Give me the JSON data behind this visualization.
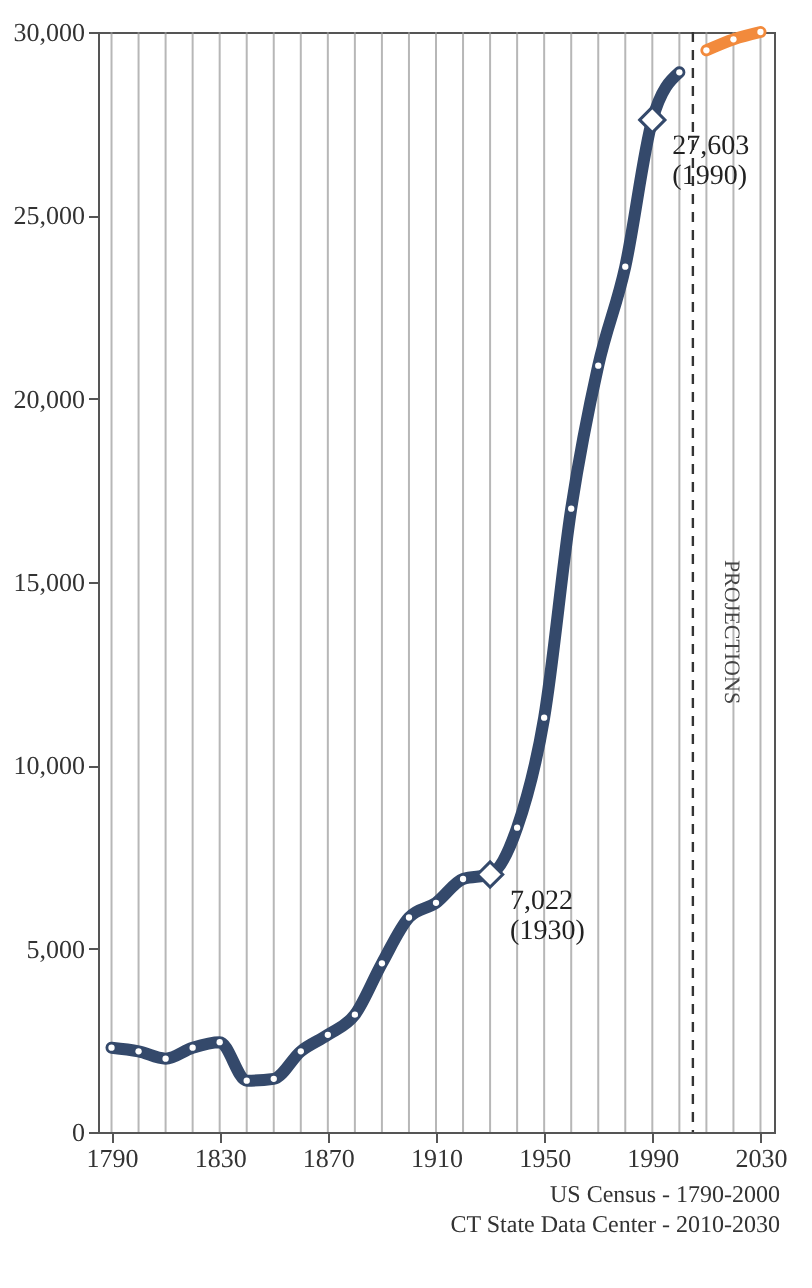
{
  "chart_data": {
    "type": "line",
    "series": [
      {
        "color": "#34496b",
        "x": [
          1790,
          1800,
          1810,
          1820,
          1830,
          1840,
          1850,
          1860,
          1870,
          1880,
          1890,
          1900,
          1910,
          1920,
          1930,
          1940,
          1950,
          1960,
          1970,
          1980,
          1990,
          2000
        ],
        "values": [
          2300,
          2200,
          2000,
          2300,
          2450,
          1400,
          1450,
          2200,
          2650,
          3200,
          4600,
          5850,
          6250,
          6900,
          7022,
          8300,
          11300,
          17000,
          20900,
          23600,
          27603,
          28900
        ]
      },
      {
        "color": "#f28a3c",
        "x": [
          2010,
          2020,
          2030
        ],
        "values": [
          29500,
          29800,
          30000
        ]
      }
    ],
    "xlim": [
      1785,
      2035
    ],
    "xticks": [
      1790,
      {
        "value": 1800,
        "label": null
      },
      {
        "value": 1810,
        "label": null
      },
      {
        "value": 1820,
        "label": null
      },
      1830,
      {
        "value": 1840,
        "label": null
      },
      {
        "value": 1850,
        "label": null
      },
      {
        "value": 1860,
        "label": null
      },
      1870,
      {
        "value": 1880,
        "label": null
      },
      {
        "value": 1890,
        "label": null
      },
      {
        "value": 1900,
        "label": null
      },
      1910,
      {
        "value": 1920,
        "label": null
      },
      {
        "value": 1930,
        "label": null
      },
      {
        "value": 1940,
        "label": null
      },
      1950,
      {
        "value": 1960,
        "label": null
      },
      {
        "value": 1970,
        "label": null
      },
      {
        "value": 1980,
        "label": null
      },
      1990,
      {
        "value": 2000,
        "label": null
      },
      {
        "value": 2010,
        "label": null
      },
      {
        "value": 2020,
        "label": null
      },
      2030
    ],
    "ylim": [
      0,
      30000
    ],
    "yticks": [
      0,
      {
        "value": 5000,
        "label": "5,000"
      },
      {
        "value": 10000,
        "label": "10,000"
      },
      {
        "value": 15000,
        "label": "15,000"
      },
      {
        "value": 20000,
        "label": "20,000"
      },
      {
        "value": 25000,
        "label": "25,000"
      },
      {
        "value": 30000,
        "label": "30,000"
      }
    ],
    "grid": "x",
    "marker": "circle",
    "line_style": "solid",
    "ref_lines": [
      {
        "axis": "x",
        "value": 2005,
        "label": "PROJECTIONS",
        "line_style": "dashed"
      }
    ],
    "annotations": [
      {
        "text": "27,603\n(1990)",
        "x": 1990,
        "y": 27603
      },
      {
        "text": "7,022\n(1930)",
        "x": 1930,
        "y": 7022
      },
      "US Census - 1790-2000",
      "CT State Data Center - 2010-2030"
    ]
  }
}
